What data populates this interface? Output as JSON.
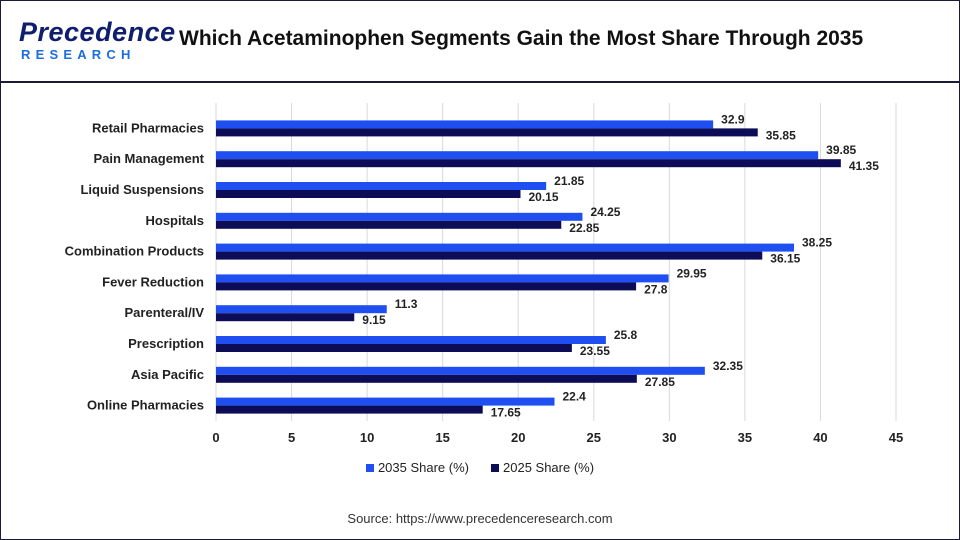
{
  "brand": {
    "name_main": "Precedence",
    "name_sub": "RESEARCH"
  },
  "title": "Which Acetaminophen Segments Gain the Most Share Through 2035",
  "source": "Source: https://www.precedenceresearch.com",
  "colors": {
    "series_2035": "#1f4ff0",
    "series_2025": "#0d0d57",
    "grid": "#d9d9d9"
  },
  "chart_data": {
    "type": "bar",
    "orientation": "horizontal",
    "categories": [
      "Retail Pharmacies",
      "Pain Management",
      "Liquid Suspensions",
      "Hospitals",
      "Combination Products",
      "Fever Reduction",
      "Parenteral/IV",
      "Prescription",
      "Asia Pacific",
      "Online Pharmacies"
    ],
    "series": [
      {
        "name": "2035 Share (%)",
        "values": [
          32.9,
          39.85,
          21.85,
          24.25,
          38.25,
          29.95,
          11.3,
          25.8,
          32.35,
          22.4
        ]
      },
      {
        "name": "2025 Share (%)",
        "values": [
          35.85,
          41.35,
          20.15,
          22.85,
          36.15,
          27.8,
          9.15,
          23.55,
          27.85,
          17.65
        ]
      }
    ],
    "value_labels": [
      [
        "32.9",
        "39.85",
        "21.85",
        "24.25",
        "38.25",
        "29.95",
        "11.3",
        "25.8",
        "32.35",
        "22.4"
      ],
      [
        "35.85",
        "41.35",
        "20.15",
        "22.85",
        "36.15",
        "27.8",
        "9.15",
        "23.55",
        "27.85",
        "17.65"
      ]
    ],
    "xlim": [
      0,
      45
    ],
    "xticks": [
      0,
      5,
      10,
      15,
      20,
      25,
      30,
      35,
      40,
      45
    ],
    "xtick_labels": [
      "0",
      "5",
      "10",
      "15",
      "20",
      "25",
      "30",
      "35",
      "40",
      "45"
    ],
    "grid": true,
    "legend_position": "bottom"
  }
}
